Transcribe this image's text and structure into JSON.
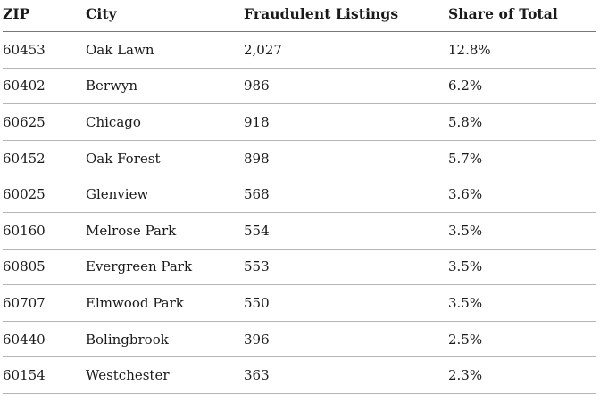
{
  "colors": {
    "background": "#ffffff",
    "text": "#1a1a1a",
    "header_rule": "#777777",
    "row_rule": "#b5b5b5"
  },
  "chart_data": {
    "type": "table",
    "columns": [
      "ZIP",
      "City",
      "Fraudulent Listings",
      "Share of Total"
    ],
    "rows": [
      [
        "60453",
        "Oak Lawn",
        "2,027",
        "12.8%"
      ],
      [
        "60402",
        "Berwyn",
        "986",
        "6.2%"
      ],
      [
        "60625",
        "Chicago",
        "918",
        "5.8%"
      ],
      [
        "60452",
        "Oak Forest",
        "898",
        "5.7%"
      ],
      [
        "60025",
        "Glenview",
        "568",
        "3.6%"
      ],
      [
        "60160",
        "Melrose Park",
        "554",
        "3.5%"
      ],
      [
        "60805",
        "Evergreen Park",
        "553",
        "3.5%"
      ],
      [
        "60707",
        "Elmwood Park",
        "550",
        "3.5%"
      ],
      [
        "60440",
        "Bolingbrook",
        "396",
        "2.5%"
      ],
      [
        "60154",
        "Westchester",
        "363",
        "2.3%"
      ]
    ],
    "numeric": {
      "fraudulent_listings": [
        2027,
        986,
        918,
        898,
        568,
        554,
        553,
        550,
        396,
        363
      ],
      "share_of_total_pct": [
        12.8,
        6.2,
        5.8,
        5.7,
        3.6,
        3.5,
        3.5,
        3.5,
        2.5,
        2.3
      ]
    },
    "title": "",
    "legend": "none",
    "grid": "horizontal rules only"
  }
}
